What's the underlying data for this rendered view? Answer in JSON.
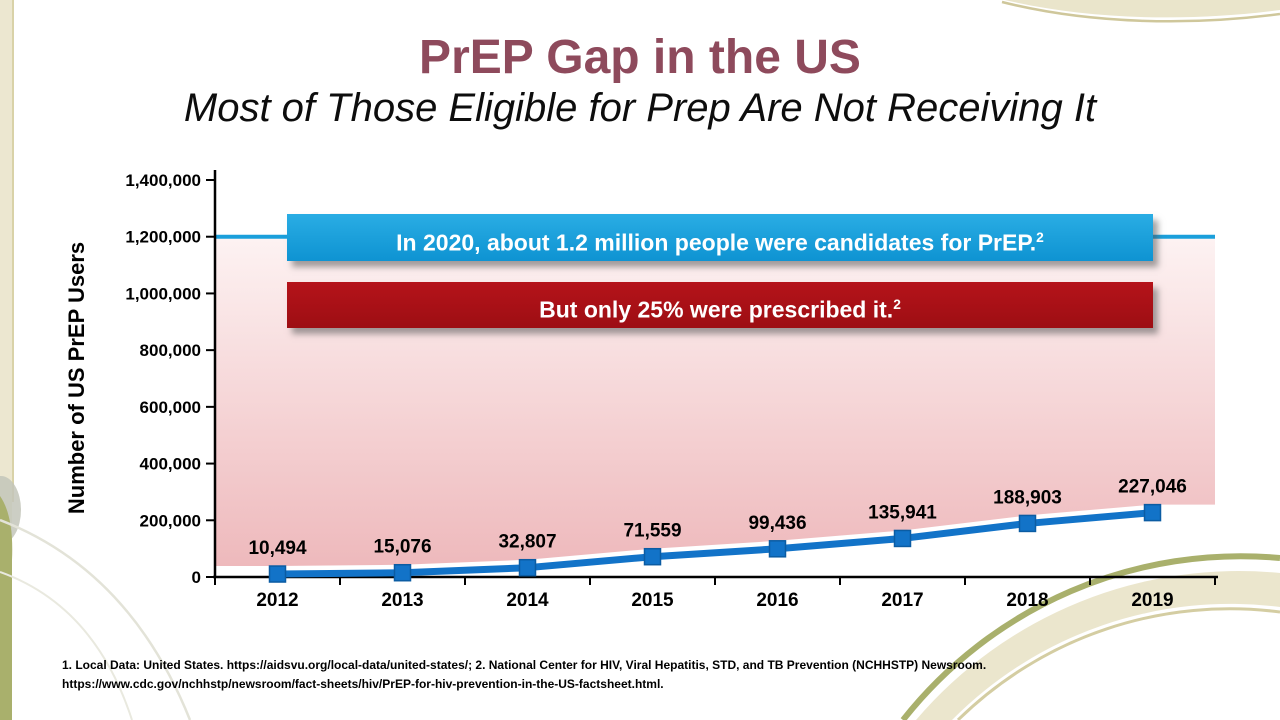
{
  "slide": {
    "title": "PrEP Gap in the US",
    "subtitle": "Most of Those Eligible for Prep Are Not Receiving It",
    "footnote_line1": "1. Local Data: United States. https://aidsvu.org/local-data/united-states/;  2. National Center for HIV, Viral Hepatitis, STD, and TB Prevention (NCHHSTP) Newsroom.",
    "footnote_line2": "https://www.cdc.gov/nchhstp/newsroom/fact-sheets/hiv/PrEP-for-hiv-prevention-in-the-US-factsheet.html."
  },
  "banners": {
    "candidates": {
      "text": "In 2020, about 1.2 million people were candidates for PrEP.",
      "superscript": "2",
      "color": "#17a0dc"
    },
    "prescribed": {
      "text": "But only 25% were prescribed it.",
      "superscript": "2",
      "color": "#b0121a"
    }
  },
  "colors": {
    "title": "#8e4a5c",
    "banner_blue": "#17a0dc",
    "banner_red": "#b0121a",
    "data_line": "#1273c8",
    "reference_line": "#1b9fdb",
    "gap_top": "#fdf2f2",
    "gap_bottom": "#eeb9bc"
  },
  "chart_data": {
    "type": "line",
    "title": "",
    "categories": [
      "2012",
      "2013",
      "2014",
      "2015",
      "2016",
      "2017",
      "2018",
      "2019"
    ],
    "series": [
      {
        "name": "Number of US PrEP Users",
        "values": [
          10494,
          15076,
          32807,
          71559,
          99436,
          135941,
          188903,
          227046
        ]
      }
    ],
    "data_labels": [
      "10,494",
      "15,076",
      "32,807",
      "71,559",
      "99,436",
      "135,941",
      "188,903",
      "227,046"
    ],
    "xlabel": "",
    "ylabel": "Number of US PrEP Users",
    "ylim": [
      0,
      1400000
    ],
    "yticks": [
      0,
      200000,
      400000,
      600000,
      800000,
      1000000,
      1200000,
      1400000
    ],
    "ytick_labels": [
      "0",
      "200,000",
      "400,000",
      "600,000",
      "800,000",
      "1,000,000",
      "1,200,000",
      "1,400,000"
    ],
    "grid": "off",
    "legend": "none",
    "marker": "square",
    "line_color": "#1273c8",
    "reference_line": {
      "value": 1200000,
      "color": "#1b9fdb"
    },
    "gap_area": {
      "between": [
        "reference_line",
        "series"
      ],
      "gradient_top": "#fdf2f2",
      "gradient_bottom": "#eeb9bc"
    }
  }
}
